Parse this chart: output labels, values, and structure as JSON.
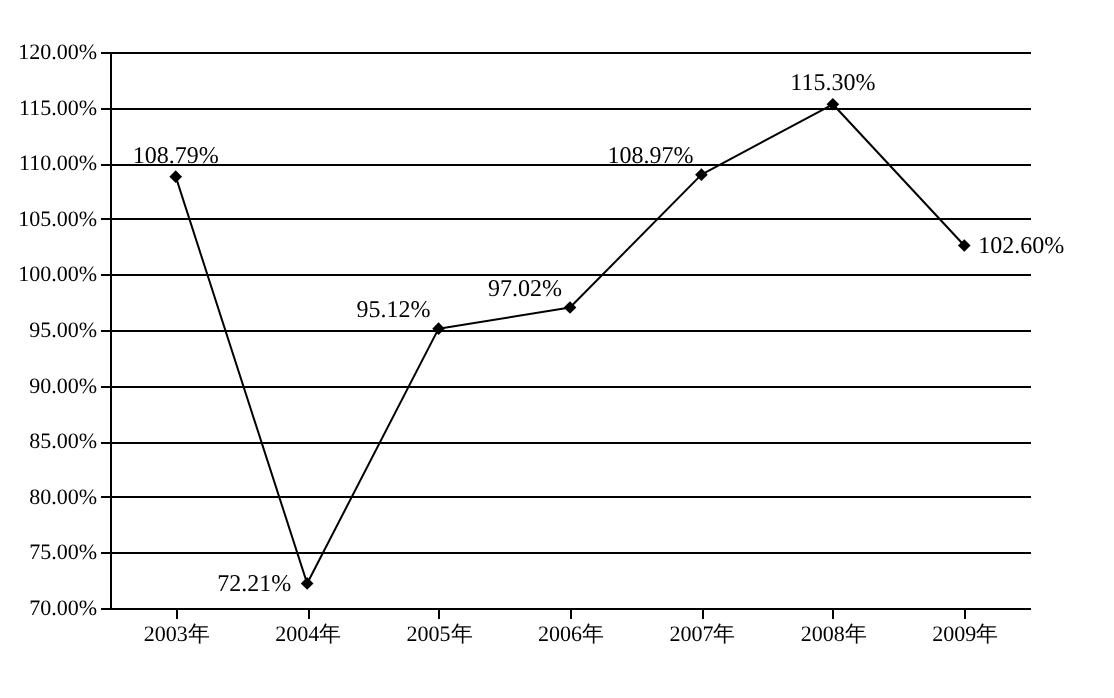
{
  "chart_data": {
    "type": "line",
    "categories": [
      "2003年",
      "2004年",
      "2005年",
      "2006年",
      "2007年",
      "2008年",
      "2009年"
    ],
    "series": [
      {
        "color": "#000000",
        "values": [
          108.79,
          72.21,
          95.12,
          97.02,
          108.97,
          115.3,
          102.6
        ],
        "value_labels": [
          "108.79%",
          "72.21%",
          "95.12%",
          "97.02%",
          "108.97%",
          "115.30%",
          "102.60%"
        ]
      }
    ],
    "ylim": [
      70,
      120
    ],
    "yticks": [
      {
        "value": 70,
        "label": "70.00%"
      },
      {
        "value": 75,
        "label": "75.00%"
      },
      {
        "value": 80,
        "label": "80.00%"
      },
      {
        "value": 85,
        "label": "85.00%"
      },
      {
        "value": 90,
        "label": "90.00%"
      },
      {
        "value": 95,
        "label": "95.00%"
      },
      {
        "value": 100,
        "label": "100.00%"
      },
      {
        "value": 105,
        "label": "105.00%"
      },
      {
        "value": 110,
        "label": "110.00%"
      },
      {
        "value": 115,
        "label": "115.00%"
      },
      {
        "value": 120,
        "label": "120.00%"
      }
    ],
    "grid": "y",
    "marker": "diamond",
    "line_style": "solid",
    "legend": false
  }
}
